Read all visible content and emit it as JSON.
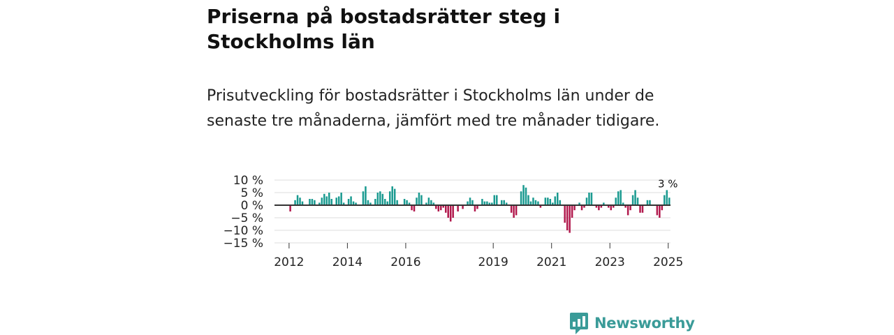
{
  "title": "Priserna på bostadsrätter steg i Stockholms län",
  "subtitle": "Prisutveckling för bostadsrätter i Stockholms län under de senaste tre månaderna, jämfört med tre månader tidigare.",
  "brand": {
    "name": "Newsworthy",
    "color": "#3a9b98"
  },
  "colors": {
    "positive": "#1a9a90",
    "negative": "#b1184c",
    "zero_line": "#333333",
    "grid": "#dddddd"
  },
  "chart_data": {
    "type": "bar",
    "x_start": 2011.5,
    "x_step": 0.0833,
    "ylim": [
      -15,
      10
    ],
    "y_ticks": [
      10,
      5,
      0,
      -5,
      -10,
      -15
    ],
    "y_tick_labels": [
      "10 %",
      "5 %",
      "0 %",
      "−5 %",
      "−10 %",
      "−15 %"
    ],
    "x_ticks": [
      2012,
      2014,
      2016,
      2019,
      2021,
      2023,
      2025
    ],
    "x_tick_labels": [
      "2012",
      "2014",
      "2016",
      "2019",
      "2021",
      "2023",
      "2025"
    ],
    "last_value_label": "3 %",
    "values": [
      0,
      0,
      0,
      0,
      0,
      0,
      -2.5,
      0,
      2,
      4,
      3,
      1.5,
      0,
      0,
      2.5,
      2.5,
      2,
      0,
      1,
      3,
      4.5,
      3.5,
      5,
      2.5,
      0,
      3,
      3.5,
      5,
      1,
      0,
      2.5,
      3.5,
      1.5,
      1,
      0,
      0,
      5.5,
      7.5,
      2,
      1,
      0,
      2.5,
      5,
      5.5,
      4.5,
      2.5,
      1.5,
      5.5,
      7.5,
      6.5,
      2,
      0,
      0,
      2.5,
      2,
      1,
      -2,
      -2.5,
      3,
      5,
      4,
      0,
      1,
      3,
      2,
      1,
      -1.5,
      -2.5,
      -2,
      -1,
      -3,
      -5,
      -6.5,
      -5,
      0,
      -2.5,
      0,
      -1.5,
      0,
      1.5,
      3,
      2,
      -2.5,
      -1.5,
      0,
      2.5,
      1.5,
      1.5,
      1,
      1,
      4,
      4,
      0,
      2,
      2,
      1,
      0,
      -3,
      -5,
      -4,
      0,
      5.5,
      8,
      7,
      4,
      1.5,
      3,
      2,
      1.5,
      -1,
      0,
      3,
      3,
      2.5,
      1,
      3.5,
      5,
      2,
      0,
      -7,
      -10,
      -11,
      -5,
      -2,
      0,
      1,
      -2,
      -1,
      3,
      5,
      5,
      0,
      -1,
      -2,
      -1,
      1,
      0,
      -1,
      -2,
      -1,
      3,
      5.5,
      6,
      1,
      -1,
      -4,
      -2,
      4,
      6,
      3,
      -3,
      -3,
      0,
      2,
      2,
      0,
      0,
      -4,
      -5,
      -2,
      4,
      6,
      3
    ]
  }
}
